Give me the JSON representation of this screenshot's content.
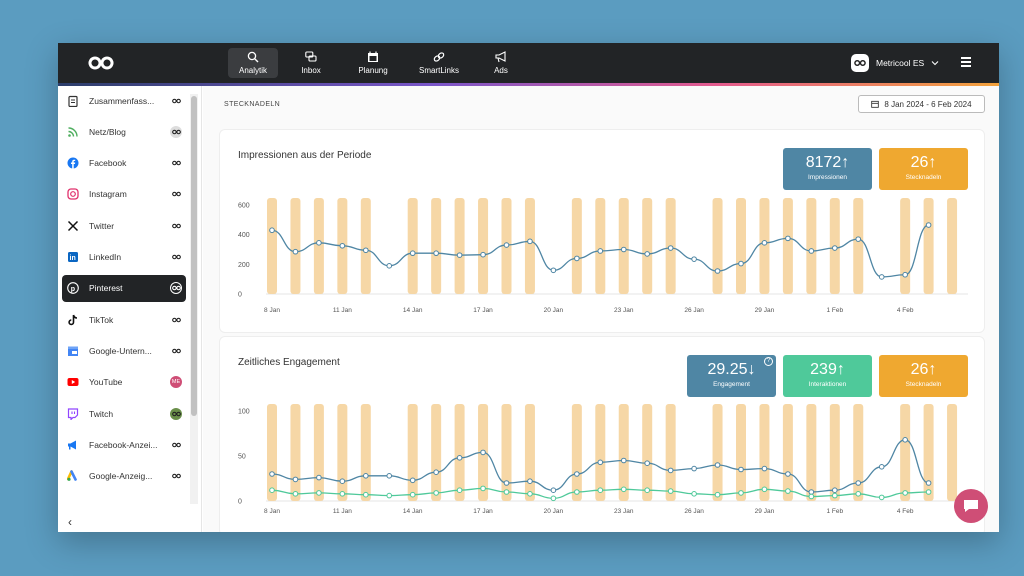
{
  "topnav": {
    "items": [
      {
        "label": "Analytik",
        "icon": "search-chart-icon",
        "active": true
      },
      {
        "label": "Inbox",
        "icon": "chat-bubbles-icon"
      },
      {
        "label": "Planung",
        "icon": "calendar-icon"
      },
      {
        "label": "SmartLinks",
        "icon": "link-icon"
      },
      {
        "label": "Ads",
        "icon": "megaphone-icon"
      }
    ],
    "account": "Metricool ES"
  },
  "sidebar": {
    "items": [
      {
        "label": "Zusammenfass...",
        "icon": "clipboard-icon"
      },
      {
        "label": "Netz/Blog",
        "icon": "rss-icon"
      },
      {
        "label": "Facebook",
        "icon": "facebook-icon"
      },
      {
        "label": "Instagram",
        "icon": "instagram-icon"
      },
      {
        "label": "Twitter",
        "icon": "x-icon"
      },
      {
        "label": "LinkedIn",
        "icon": "linkedin-icon"
      },
      {
        "label": "Pinterest",
        "icon": "pinterest-icon",
        "active": true
      },
      {
        "label": "TikTok",
        "icon": "tiktok-icon"
      },
      {
        "label": "Google-Untern...",
        "icon": "google-business-icon"
      },
      {
        "label": "YouTube",
        "icon": "youtube-icon",
        "badge": "ME"
      },
      {
        "label": "Twitch",
        "icon": "twitch-icon"
      },
      {
        "label": "Facebook-Anzei...",
        "icon": "facebook-ads-icon"
      },
      {
        "label": "Google-Anzeig...",
        "icon": "google-ads-icon"
      }
    ]
  },
  "main": {
    "section_title": "STECKNADELN",
    "date_range": "8 Jan 2024 - 6 Feb 2024"
  },
  "cards": [
    {
      "title": "Impressionen aus der Periode",
      "kpis": [
        {
          "value": "8172",
          "arrow": "↑",
          "label": "Impressionen",
          "color": "#4f86a4"
        },
        {
          "value": "26",
          "arrow": "↑",
          "label": "Stecknadeln",
          "color": "#efa830"
        }
      ]
    },
    {
      "title": "Zeitliches Engagement",
      "kpis": [
        {
          "value": "29.25",
          "arrow": "↓",
          "label": "Engagement",
          "color": "#4f86a4",
          "help": "?"
        },
        {
          "value": "239",
          "arrow": "↑",
          "label": "Interaktionen",
          "color": "#4fc99a"
        },
        {
          "value": "26",
          "arrow": "↑",
          "label": "Stecknadeln",
          "color": "#efa830"
        }
      ]
    }
  ],
  "chart_data": [
    {
      "type": "bar+line",
      "x_tick_labels": [
        "8 Jan",
        "11 Jan",
        "14 Jan",
        "17 Jan",
        "20 Jan",
        "23 Jan",
        "26 Jan",
        "29 Jan",
        "1 Feb",
        "4 Feb"
      ],
      "ylim": [
        0,
        600
      ],
      "yticks": [
        0,
        200,
        400,
        600
      ],
      "bar_days": [
        "8 Jan",
        "9 Jan",
        "10 Jan",
        "11 Jan",
        "12 Jan",
        "14 Jan",
        "15 Jan",
        "16 Jan",
        "17 Jan",
        "18 Jan",
        "19 Jan",
        "21 Jan",
        "22 Jan",
        "23 Jan",
        "24 Jan",
        "25 Jan",
        "27 Jan",
        "28 Jan",
        "29 Jan",
        "30 Jan",
        "31 Jan",
        "1 Feb",
        "2 Feb",
        "4 Feb",
        "5 Feb",
        "6 Feb"
      ],
      "bar_color": "#f6d7a6",
      "series": [
        {
          "color": "#4f86a4",
          "x": [
            "8 Jan",
            "9 Jan",
            "10 Jan",
            "11 Jan",
            "12 Jan",
            "13 Jan",
            "14 Jan",
            "15 Jan",
            "16 Jan",
            "17 Jan",
            "18 Jan",
            "19 Jan",
            "20 Jan",
            "21 Jan",
            "22 Jan",
            "23 Jan",
            "24 Jan",
            "25 Jan",
            "26 Jan",
            "27 Jan",
            "28 Jan",
            "29 Jan",
            "30 Jan",
            "31 Jan",
            "1 Feb",
            "2 Feb",
            "3 Feb",
            "4 Feb",
            "5 Feb"
          ],
          "values": [
            430,
            285,
            345,
            325,
            295,
            190,
            275,
            275,
            262,
            265,
            330,
            355,
            160,
            240,
            290,
            300,
            270,
            310,
            235,
            155,
            205,
            345,
            375,
            290,
            310,
            370,
            115,
            130,
            465
          ]
        }
      ]
    },
    {
      "type": "bar+line",
      "x_tick_labels": [
        "8 Jan",
        "11 Jan",
        "14 Jan",
        "17 Jan",
        "20 Jan",
        "23 Jan",
        "26 Jan",
        "29 Jan",
        "1 Feb",
        "4 Feb"
      ],
      "ylim": [
        0,
        100
      ],
      "yticks": [
        0,
        50,
        100
      ],
      "bar_days": [
        "8 Jan",
        "9 Jan",
        "10 Jan",
        "11 Jan",
        "12 Jan",
        "14 Jan",
        "15 Jan",
        "16 Jan",
        "17 Jan",
        "18 Jan",
        "19 Jan",
        "21 Jan",
        "22 Jan",
        "23 Jan",
        "24 Jan",
        "25 Jan",
        "27 Jan",
        "28 Jan",
        "29 Jan",
        "30 Jan",
        "31 Jan",
        "1 Feb",
        "2 Feb",
        "4 Feb",
        "5 Feb",
        "6 Feb"
      ],
      "bar_color": "#f6d7a6",
      "series": [
        {
          "color": "#4f86a4",
          "x": [
            "8 Jan",
            "9 Jan",
            "10 Jan",
            "11 Jan",
            "12 Jan",
            "13 Jan",
            "14 Jan",
            "15 Jan",
            "16 Jan",
            "17 Jan",
            "18 Jan",
            "19 Jan",
            "20 Jan",
            "21 Jan",
            "22 Jan",
            "23 Jan",
            "24 Jan",
            "25 Jan",
            "26 Jan",
            "27 Jan",
            "28 Jan",
            "29 Jan",
            "30 Jan",
            "31 Jan",
            "1 Feb",
            "2 Feb",
            "3 Feb",
            "4 Feb",
            "5 Feb"
          ],
          "values": [
            30,
            24,
            26,
            22,
            28,
            28,
            23,
            32,
            48,
            54,
            20,
            22,
            12,
            30,
            43,
            45,
            42,
            34,
            36,
            40,
            35,
            36,
            30,
            10,
            12,
            20,
            38,
            68,
            20
          ]
        },
        {
          "color": "#4fc99a",
          "x": [
            "8 Jan",
            "9 Jan",
            "10 Jan",
            "11 Jan",
            "12 Jan",
            "13 Jan",
            "14 Jan",
            "15 Jan",
            "16 Jan",
            "17 Jan",
            "18 Jan",
            "19 Jan",
            "20 Jan",
            "21 Jan",
            "22 Jan",
            "23 Jan",
            "24 Jan",
            "25 Jan",
            "26 Jan",
            "27 Jan",
            "28 Jan",
            "29 Jan",
            "30 Jan",
            "31 Jan",
            "1 Feb",
            "2 Feb",
            "3 Feb",
            "4 Feb",
            "5 Feb"
          ],
          "values": [
            12,
            8,
            9,
            8,
            7,
            6,
            7,
            9,
            12,
            14,
            10,
            8,
            3,
            10,
            12,
            13,
            12,
            11,
            8,
            7,
            9,
            13,
            11,
            5,
            6,
            8,
            4,
            9,
            10
          ]
        }
      ]
    }
  ]
}
